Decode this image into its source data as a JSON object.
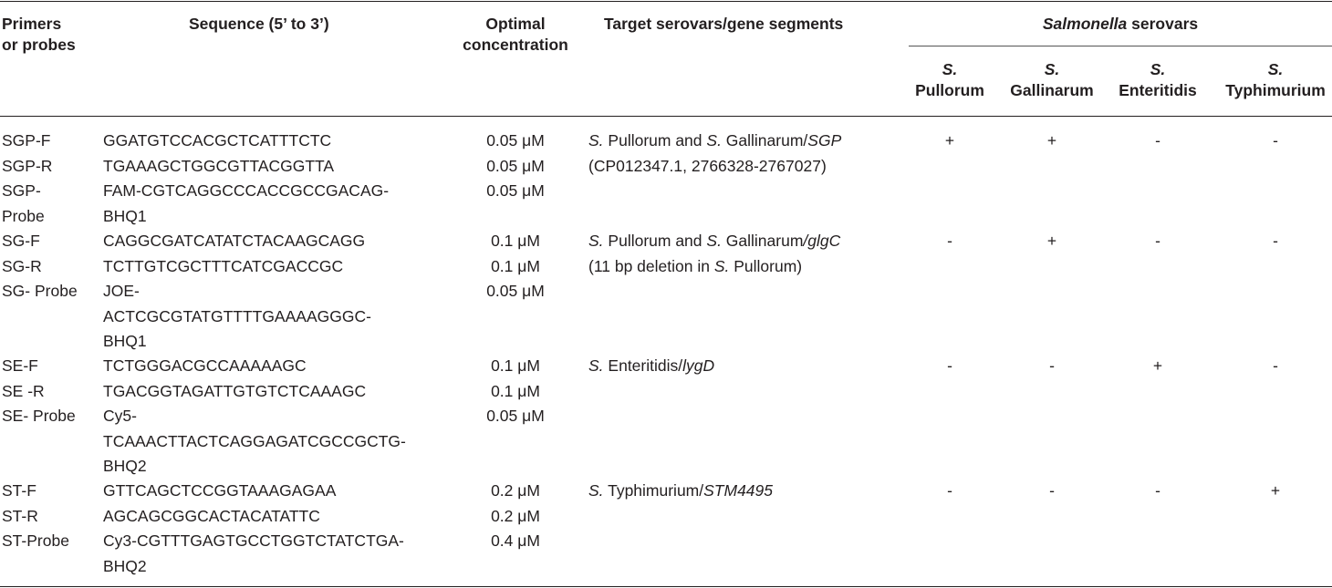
{
  "header": {
    "col1": [
      "Primers",
      "or probes"
    ],
    "col2": "Sequence (5’ to 3’)",
    "col3": [
      "Optimal",
      "concentration"
    ],
    "col4": "Target serovars/gene segments",
    "group_prefix_italic": "Salmonella",
    "group_suffix": " serovars",
    "serovars": [
      {
        "abbr": "S.",
        "name": "Pullorum"
      },
      {
        "abbr": "S.",
        "name": "Gallinarum"
      },
      {
        "abbr": "S.",
        "name": "Enteritidis"
      },
      {
        "abbr": "S.",
        "name": "Typhimurium"
      }
    ]
  },
  "groups": [
    {
      "primers": [
        "SGP-F",
        "SGP-R",
        "SGP-",
        "Probe"
      ],
      "sequences": [
        "GGATGTCCACGCTCATTTCTC",
        "TGAAAGCTGGCGTTACGGTTA",
        "FAM-CGTCAGGCCCACCGCCGACAG-",
        "BHQ1"
      ],
      "concentrations": [
        "0.05 μM",
        "0.05 μM",
        "0.05 μM"
      ],
      "target": {
        "line1": [
          {
            "t": "S.",
            "i": true
          },
          {
            "t": " Pullorum and ",
            "i": false
          },
          {
            "t": "S.",
            "i": true
          },
          {
            "t": " Gallinarum/",
            "i": false
          },
          {
            "t": "SGP",
            "i": true
          }
        ],
        "line2": [
          {
            "t": "(CP012347.1, 2766328-2767027)",
            "i": false
          }
        ]
      },
      "results": [
        "+",
        "+",
        "-",
        "-"
      ]
    },
    {
      "primers": [
        "SG-F",
        "SG-R",
        "SG- Probe"
      ],
      "sequences": [
        "CAGGCGATCATATCTACAAGCAGG",
        "TCTTGTCGCTTTCATCGACCGC",
        "JOE-",
        "ACTCGCGTATGTTTTGAAAAGGGC-",
        "BHQ1"
      ],
      "concentrations": [
        "0.1 μM",
        "0.1 μM",
        "0.05 μM"
      ],
      "target": {
        "line1": [
          {
            "t": "S.",
            "i": true
          },
          {
            "t": " Pullorum and ",
            "i": false
          },
          {
            "t": "S.",
            "i": true
          },
          {
            "t": " Gallinarum",
            "i": false
          },
          {
            "t": "/glgC",
            "i": true
          }
        ],
        "line2": [
          {
            "t": "(11 bp deletion in ",
            "i": false
          },
          {
            "t": "S.",
            "i": true
          },
          {
            "t": " Pullorum)",
            "i": false
          }
        ]
      },
      "results": [
        "-",
        "+",
        "-",
        "-"
      ]
    },
    {
      "primers": [
        "SE-F",
        "SE -R",
        "SE- Probe"
      ],
      "sequences": [
        "TCTGGGACGCCAAAAAGC",
        "TGACGGTAGATTGTGTCTCAAAGC",
        "Cy5-",
        "TCAAACTTACTCAGGAGATCGCCGCTG-",
        "BHQ2"
      ],
      "concentrations": [
        "0.1 μM",
        "0.1 μM",
        "0.05 μM"
      ],
      "target": {
        "line1": [
          {
            "t": "S.",
            "i": true
          },
          {
            "t": " Enteritidis/",
            "i": false
          },
          {
            "t": "lygD",
            "i": true
          }
        ],
        "line2": []
      },
      "results": [
        "-",
        "-",
        "+",
        "-"
      ]
    },
    {
      "primers": [
        "ST-F",
        "ST-R",
        "ST-Probe"
      ],
      "sequences": [
        "GTTCAGCTCCGGTAAAGAGAA",
        "AGCAGCGGCACTACATATTC",
        "Cy3-CGTTTGAGTGCCTGGTCTATCTGA-",
        "BHQ2"
      ],
      "concentrations": [
        "0.2 μM",
        "0.2 μM",
        "0.4 μM"
      ],
      "target": {
        "line1": [
          {
            "t": "S.",
            "i": true
          },
          {
            "t": " Typhimurium/",
            "i": false
          },
          {
            "t": "STM4495",
            "i": true
          }
        ],
        "line2": []
      },
      "results": [
        "-",
        "-",
        "-",
        "+"
      ]
    }
  ]
}
